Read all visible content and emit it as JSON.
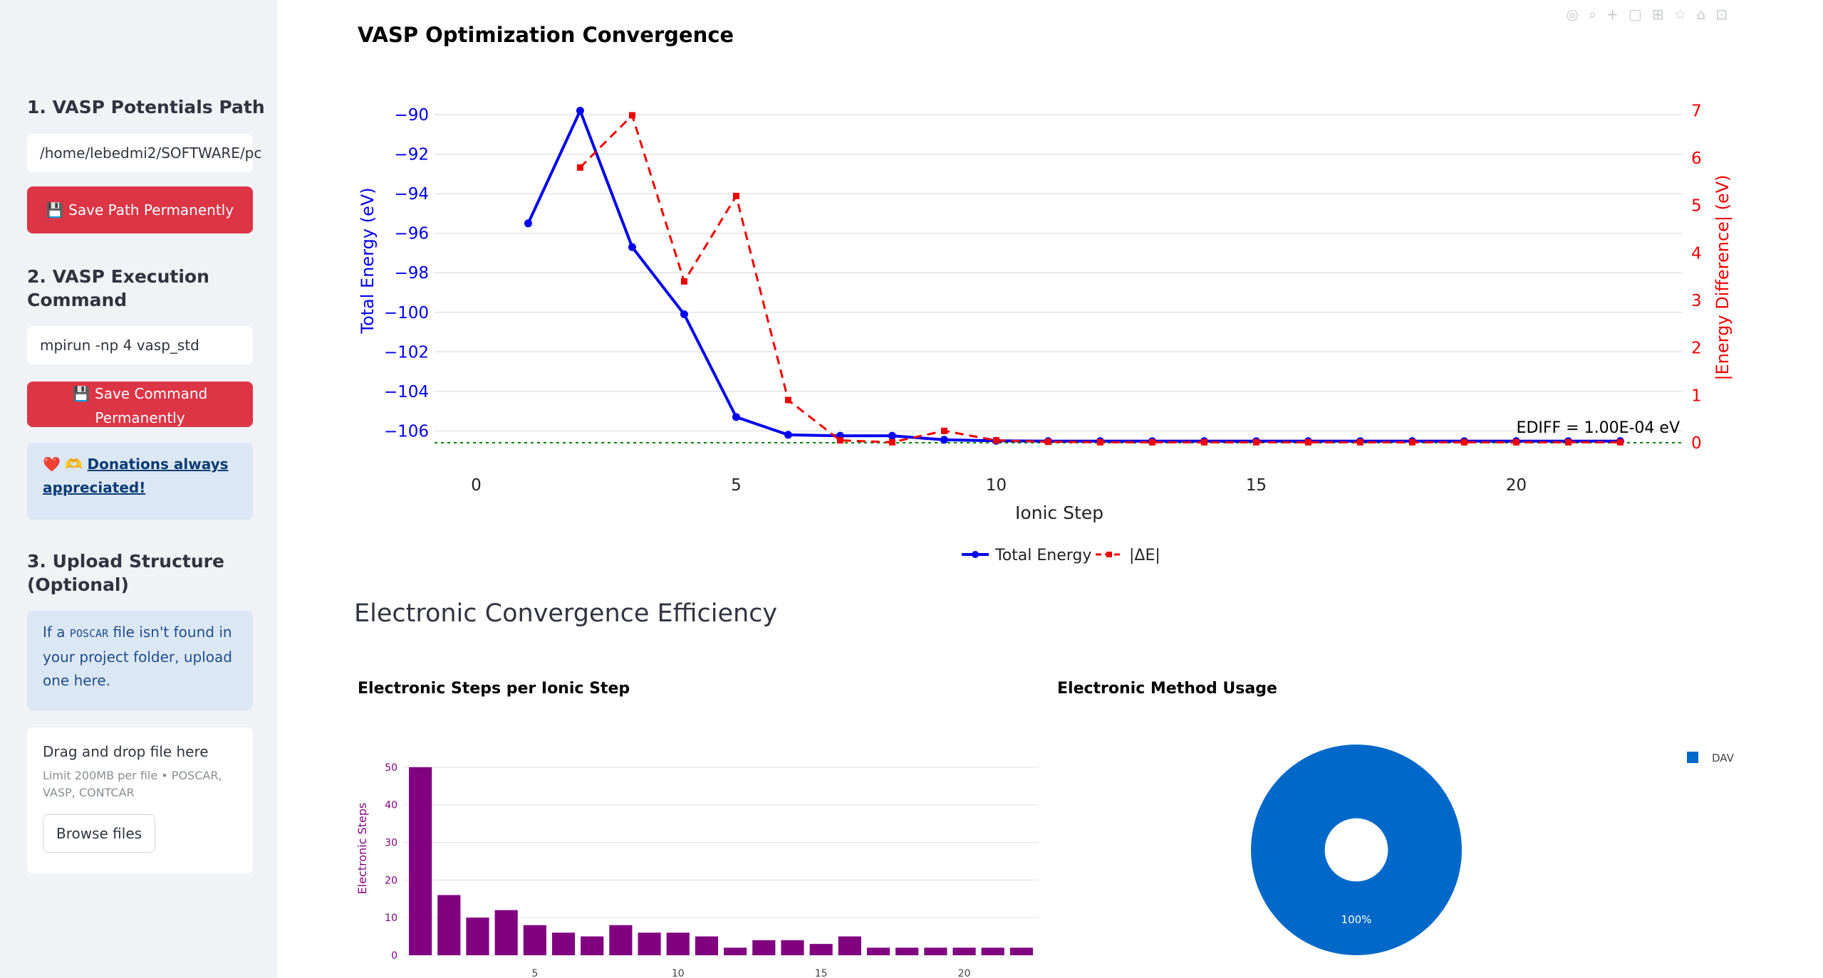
{
  "sidebar": {
    "section1_title": "1. VASP Potentials Path",
    "potentials_path_value": "/home/lebedmi2/SOFTWARE/pc",
    "save_path_label": "💾 Save Path Permanently",
    "section2_title_line1": "2. VASP Execution",
    "section2_title_line2": "Command",
    "command_value": "mpirun -np 4 vasp_std",
    "save_command_line1": "💾 Save Command",
    "save_command_line2": "Permanently",
    "donation_prefix": "❤️ 🫶 ",
    "donation_link_line1": "Donations always",
    "donation_link_line2": "appreciated!",
    "section3_title_line1": "3. Upload Structure",
    "section3_title_line2": "(Optional)",
    "upload_info_1": "If a ",
    "upload_info_code": "POSCAR",
    "upload_info_2": " file isn't found in",
    "upload_info_3": "your project folder, upload",
    "upload_info_4": "one here.",
    "dropzone_title": "Drag and drop file here",
    "dropzone_limit_1": "Limit 200MB per file • POSCAR,",
    "dropzone_limit_2": "VASP, CONTCAR",
    "browse_label": "Browse files"
  },
  "main": {
    "convergence_title": "VASP Optimization Convergence",
    "efficiency_header": "Electronic Convergence Efficiency",
    "bar_title": "Electronic Steps per Ionic Step",
    "pie_title": "Electronic Method Usage"
  },
  "colors": {
    "energy": "#0000ee",
    "delta": "#ee0000",
    "bar": "#800080",
    "pie": "#0068c9",
    "ediff": "#008000"
  },
  "chart_data": [
    {
      "type": "line",
      "x": [
        1,
        2,
        3,
        4,
        5,
        6,
        7,
        8,
        9,
        10,
        11,
        12,
        13,
        14,
        15,
        16,
        17,
        18,
        19,
        20,
        21,
        22
      ],
      "xlabel": "Ionic Step",
      "xlim": [
        -0.8,
        23.2
      ],
      "x_ticks": [
        0,
        5,
        10,
        15,
        20
      ],
      "grid": true,
      "legend_position": "bottom-center",
      "series": [
        {
          "name": "Total Energy",
          "axis": "left",
          "values": [
            -95.5,
            -89.8,
            -96.7,
            -100.1,
            -105.3,
            -106.2,
            -106.25,
            -106.25,
            -106.45,
            -106.5,
            -106.52,
            -106.52,
            -106.52,
            -106.52,
            -106.52,
            -106.52,
            -106.52,
            -106.52,
            -106.52,
            -106.52,
            -106.52,
            -106.52
          ]
        },
        {
          "name": "|ΔE|",
          "axis": "right",
          "x": [
            2,
            3,
            4,
            5,
            6,
            7,
            8,
            9,
            10,
            11,
            12,
            13,
            14,
            15,
            16,
            17,
            18,
            19,
            20,
            21,
            22
          ],
          "values": [
            5.8,
            6.9,
            3.4,
            5.2,
            0.9,
            0.05,
            0.01,
            0.25,
            0.05,
            0.02,
            0.01,
            0.01,
            0.01,
            0.01,
            0.01,
            0.01,
            0.01,
            0.01,
            0.01,
            0.01,
            0.01
          ]
        }
      ],
      "y_left": {
        "label": "Total Energy (eV)",
        "ylim": [
          -106.6,
          -89.6
        ],
        "ticks": [
          -90,
          -92,
          -94,
          -96,
          -98,
          -100,
          -102,
          -104,
          -106
        ]
      },
      "y_right": {
        "label": "|Energy Difference| (eV)",
        "ylim": [
          0,
          7.08
        ],
        "ticks": [
          0,
          1,
          2,
          3,
          4,
          5,
          6,
          7
        ]
      },
      "annotation": "EDIFF = 1.00E-04 eV",
      "threshold": 0.0001
    },
    {
      "type": "bar",
      "title": "Electronic Steps per Ionic Step",
      "ylabel": "Electronic Steps",
      "categories": [
        1,
        2,
        3,
        4,
        5,
        6,
        7,
        8,
        9,
        10,
        11,
        12,
        13,
        14,
        15,
        16,
        17,
        18,
        19,
        20,
        21,
        22
      ],
      "values": [
        50,
        16,
        10,
        12,
        8,
        6,
        5,
        8,
        6,
        6,
        5,
        2,
        4,
        4,
        3,
        5,
        2,
        2,
        2,
        2,
        2,
        2
      ],
      "ylim": [
        0,
        53
      ],
      "y_ticks": [
        0,
        10,
        20,
        30,
        40,
        50
      ],
      "x_ticks": [
        5,
        10,
        15,
        20
      ]
    },
    {
      "type": "pie",
      "title": "Electronic Method Usage",
      "labels": [
        "DAV"
      ],
      "values": [
        100
      ],
      "slice_labels": [
        "100%"
      ],
      "legend_position": "top-right",
      "hole": 0.3
    }
  ]
}
